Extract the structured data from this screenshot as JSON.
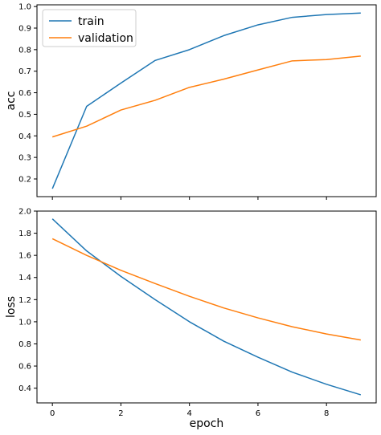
{
  "chart_data": [
    {
      "type": "line",
      "title": "",
      "xlabel": "",
      "ylabel": "acc",
      "xlim": [
        -0.45,
        9.45
      ],
      "ylim": [
        0.118,
        1.008
      ],
      "x_ticks": [
        0,
        2,
        4,
        6,
        8
      ],
      "y_ticks": [
        0.2,
        0.3,
        0.4,
        0.5,
        0.6,
        0.7,
        0.8,
        0.9,
        1.0
      ],
      "y_tick_labels": [
        "0.2",
        "0.3",
        "0.4",
        "0.5",
        "0.6",
        "0.7",
        "0.8",
        "0.9",
        "1.0"
      ],
      "show_x_tick_labels": false,
      "grid": false,
      "legend": "upper-left",
      "x": [
        0,
        1,
        2,
        3,
        4,
        5,
        6,
        7,
        8,
        9
      ],
      "series": [
        {
          "name": "train",
          "color": "#1f77b4",
          "values": [
            0.155,
            0.537,
            0.645,
            0.75,
            0.8,
            0.865,
            0.915,
            0.95,
            0.963,
            0.97
          ]
        },
        {
          "name": "validation",
          "color": "#ff7f0e",
          "values": [
            0.395,
            0.445,
            0.52,
            0.565,
            0.625,
            0.663,
            0.706,
            0.748,
            0.754,
            0.77
          ]
        }
      ]
    },
    {
      "type": "line",
      "title": "",
      "xlabel": "epoch",
      "ylabel": "loss",
      "xlim": [
        -0.45,
        9.45
      ],
      "ylim": [
        0.267,
        2.0
      ],
      "x_ticks": [
        0,
        2,
        4,
        6,
        8
      ],
      "x_tick_labels": [
        "0",
        "2",
        "4",
        "6",
        "8"
      ],
      "y_ticks": [
        0.4,
        0.6,
        0.8,
        1.0,
        1.2,
        1.4,
        1.6,
        1.8,
        2.0
      ],
      "y_tick_labels": [
        "0.4",
        "0.6",
        "0.8",
        "1.0",
        "1.2",
        "1.4",
        "1.6",
        "1.8",
        "2.0"
      ],
      "show_x_tick_labels": true,
      "grid": false,
      "legend": "none",
      "x": [
        0,
        1,
        2,
        3,
        4,
        5,
        6,
        7,
        8,
        9
      ],
      "series": [
        {
          "name": "train",
          "color": "#1f77b4",
          "values": [
            1.93,
            1.64,
            1.41,
            1.2,
            1.0,
            0.825,
            0.68,
            0.545,
            0.435,
            0.34
          ]
        },
        {
          "name": "validation",
          "color": "#ff7f0e",
          "values": [
            1.75,
            1.6,
            1.465,
            1.345,
            1.23,
            1.125,
            1.035,
            0.955,
            0.89,
            0.835
          ]
        }
      ]
    }
  ]
}
